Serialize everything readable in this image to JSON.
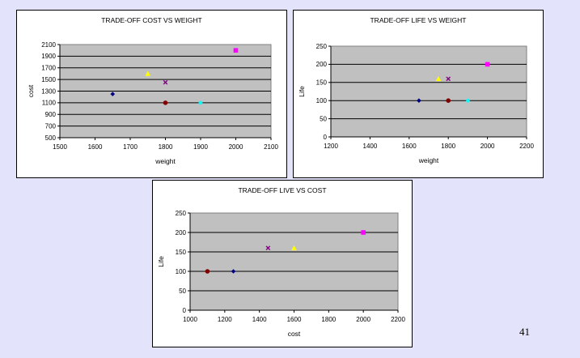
{
  "slide": {
    "page_number": "41",
    "background": "#e3e3fb"
  },
  "marker_colors": {
    "navy": "#000080",
    "yellow": "#ffff00",
    "purple": "#800080",
    "maroon": "#800000",
    "cyan": "#00ffff",
    "magenta": "#ff00ff"
  },
  "chart_data": [
    {
      "type": "scatter",
      "title": "TRADE-OFF COST VS WEIGHT",
      "xlabel": "weight",
      "ylabel": "cost",
      "xlim": [
        1500,
        2100
      ],
      "ylim": [
        500,
        2100
      ],
      "x_ticks": [
        "1500",
        "1600",
        "1700",
        "1800",
        "1900",
        "2000",
        "2100"
      ],
      "y_ticks": [
        "500",
        "700",
        "900",
        "1100",
        "1300",
        "1500",
        "1700",
        "1900",
        "2100"
      ],
      "y_grid_step": 200,
      "grid": true,
      "plot_background": "#c0c0c0",
      "points": [
        {
          "x": 1650,
          "y": 1250,
          "color": "navy",
          "marker": "diamond"
        },
        {
          "x": 1750,
          "y": 1600,
          "color": "yellow",
          "marker": "triangle"
        },
        {
          "x": 1800,
          "y": 1450,
          "color": "purple",
          "marker": "x"
        },
        {
          "x": 1800,
          "y": 1100,
          "color": "maroon",
          "marker": "circle"
        },
        {
          "x": 1900,
          "y": 1100,
          "color": "cyan",
          "marker": "star"
        },
        {
          "x": 2000,
          "y": 2000,
          "color": "magenta",
          "marker": "square"
        }
      ]
    },
    {
      "type": "scatter",
      "title": "TRADE-OFF LIFE VS WEIGHT",
      "xlabel": "weight",
      "ylabel": "Life",
      "xlim": [
        1200,
        2200
      ],
      "ylim": [
        0,
        250
      ],
      "x_ticks": [
        "1200",
        "1400",
        "1600",
        "1800",
        "2000",
        "2200"
      ],
      "y_ticks": [
        "0",
        "50",
        "100",
        "150",
        "200",
        "250"
      ],
      "y_grid_step": 50,
      "grid": true,
      "plot_background": "#c0c0c0",
      "points": [
        {
          "x": 1650,
          "y": 100,
          "color": "navy",
          "marker": "diamond"
        },
        {
          "x": 1750,
          "y": 160,
          "color": "yellow",
          "marker": "triangle"
        },
        {
          "x": 1800,
          "y": 160,
          "color": "purple",
          "marker": "x"
        },
        {
          "x": 1800,
          "y": 100,
          "color": "maroon",
          "marker": "circle"
        },
        {
          "x": 1900,
          "y": 100,
          "color": "cyan",
          "marker": "star"
        },
        {
          "x": 2000,
          "y": 200,
          "color": "magenta",
          "marker": "square"
        }
      ]
    },
    {
      "type": "scatter",
      "title": "TRADE-OFF LIVE VS COST",
      "xlabel": "cost",
      "ylabel": "Life",
      "xlim": [
        1000,
        2200
      ],
      "ylim": [
        0,
        250
      ],
      "x_ticks": [
        "1000",
        "1200",
        "1400",
        "1600",
        "1800",
        "2000",
        "2200"
      ],
      "y_ticks": [
        "0",
        "50",
        "100",
        "150",
        "200",
        "250"
      ],
      "y_grid_step": 50,
      "grid": true,
      "plot_background": "#c0c0c0",
      "points": [
        {
          "x": 1100,
          "y": 100,
          "color": "maroon",
          "marker": "circle"
        },
        {
          "x": 1250,
          "y": 100,
          "color": "navy",
          "marker": "diamond"
        },
        {
          "x": 1450,
          "y": 160,
          "color": "purple",
          "marker": "x"
        },
        {
          "x": 1600,
          "y": 160,
          "color": "yellow",
          "marker": "triangle"
        },
        {
          "x": 2000,
          "y": 200,
          "color": "magenta",
          "marker": "square"
        }
      ]
    }
  ]
}
